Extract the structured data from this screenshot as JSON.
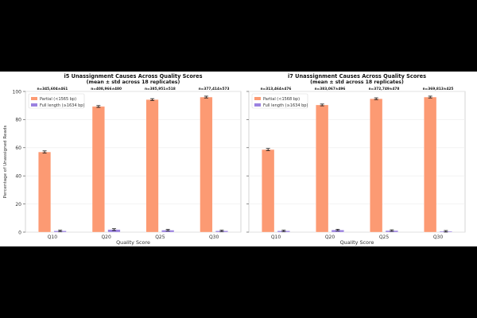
{
  "chart_data": [
    {
      "type": "bar",
      "title": "i5 Unassignment Causes Across Quality Scores",
      "subtitle": "(mean ± std across 18 replicates)",
      "xlabel": "Quality Score",
      "ylabel": "Percentage of Unassigned Reads",
      "categories": [
        "Q10",
        "Q20",
        "Q25",
        "Q30"
      ],
      "ylim": [
        0,
        100
      ],
      "yticks": [
        0,
        20,
        40,
        60,
        80,
        100
      ],
      "grid": true,
      "legend_position": "top-left",
      "n_labels": [
        "n=345,604±461",
        "n=408,966±480",
        "n=385,951±518",
        "n=377,414±573"
      ],
      "series": [
        {
          "name": "Partial (<1565 bp)",
          "color": "#fc9a73",
          "values": [
            57.0,
            89.3,
            94.2,
            96.0
          ],
          "errors": [
            0.4,
            0.3,
            0.3,
            0.3
          ]
        },
        {
          "name": "Full length (≥1634 bp)",
          "color": "#9b82e0",
          "values": [
            0.9,
            1.8,
            1.4,
            0.9
          ],
          "errors": [
            0.2,
            0.3,
            0.2,
            0.2
          ]
        }
      ]
    },
    {
      "type": "bar",
      "title": "i7 Unassignment Causes Across Quality Scores",
      "subtitle": "(mean ± std across 18 replicates)",
      "xlabel": "Quality Score",
      "ylabel": "Percentage of Unassigned Reads",
      "categories": [
        "Q10",
        "Q20",
        "Q25",
        "Q30"
      ],
      "ylim": [
        0,
        100
      ],
      "yticks": [
        0,
        20,
        40,
        60,
        80,
        100
      ],
      "grid": true,
      "legend_position": "top-left",
      "n_labels": [
        "n=313,464±476",
        "n=383,067±496",
        "n=372,749±478",
        "n=369,813±425"
      ],
      "series": [
        {
          "name": "Partial (<1568 bp)",
          "color": "#fc9a73",
          "values": [
            58.7,
            90.4,
            94.8,
            96.0
          ],
          "errors": [
            0.4,
            0.3,
            0.3,
            0.3
          ]
        },
        {
          "name": "Full length (≥1634 bp)",
          "color": "#9b82e0",
          "values": [
            0.9,
            1.5,
            1.1,
            0.6
          ],
          "errors": [
            0.2,
            0.2,
            0.2,
            0.2
          ]
        }
      ]
    }
  ]
}
